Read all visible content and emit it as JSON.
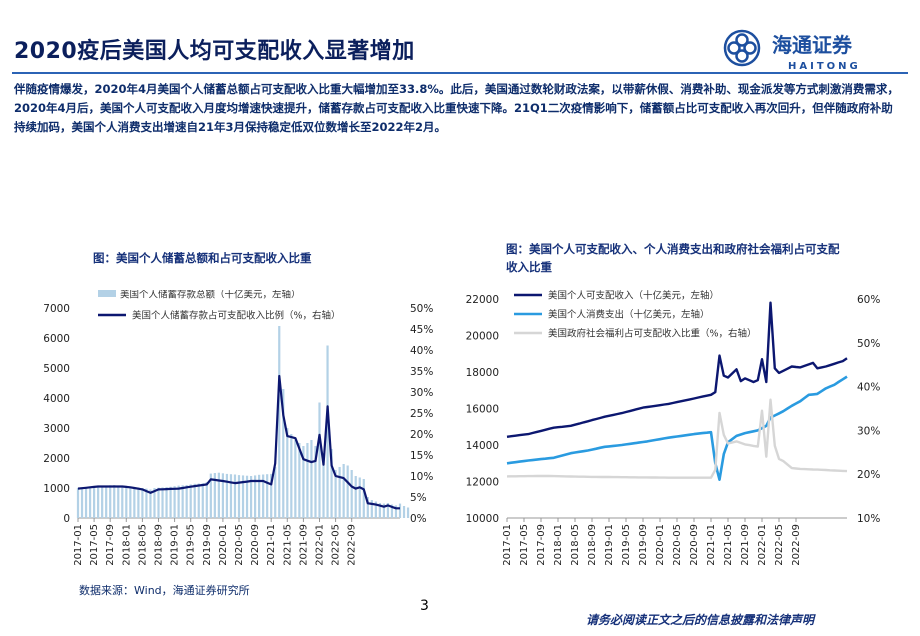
{
  "header": {
    "title": "2020疫后美国人均可支配收入显著增加",
    "intro": "伴随疫情爆发，2020年4月美国个人储蓄总额占可支配收入比重大幅增加至33.8%。此后，美国通过数轮财政法案，以带薪休假、消费补助、现金派发等方式刺激消费需求，2020年4月后，美国个人可支配收入月度均增速快速提升，储蓄存款占可支配收入比重快速下降。21Q1二次疫情影响下，储蓄额占比可支配收入再次回升，但伴随政府补助持续加码，美国个人消费支出增速自21年3月保持稳定低双位数增长至2022年2月。"
  },
  "logo": {
    "name": "海通证券",
    "latin": "HAITONG",
    "brand_color": "#1d4f9f"
  },
  "footer": {
    "source": "数据来源：Wind，海通证券研究所",
    "page_number": "3",
    "disclaimer": "请务必阅读正文之后的信息披露和法律声明"
  },
  "chart_data": [
    {
      "type": "bar",
      "title": "图：美国个人储蓄总额和占可支配收入比重",
      "x_ticks": [
        "2017-01",
        "2017-05",
        "2017-09",
        "2018-01",
        "2018-05",
        "2018-09",
        "2019-01",
        "2019-05",
        "2019-09",
        "2020-01",
        "2020-05",
        "2020-09",
        "2021-01",
        "2021-05",
        "2021-09",
        "2022-01",
        "2022-05",
        "2022-09"
      ],
      "ylim_left": [
        0,
        7000
      ],
      "yticks_left": [
        "0",
        "1000",
        "2000",
        "3000",
        "4000",
        "5000",
        "6000",
        "7000"
      ],
      "ylim_right": [
        0,
        50
      ],
      "yticks_right": [
        "0%",
        "5%",
        "10%",
        "15%",
        "20%",
        "25%",
        "30%",
        "35%",
        "40%",
        "45%",
        "50%"
      ],
      "legend_position": "top-left",
      "colors": {
        "bars": "#b3d1e6",
        "line": "#0c1770"
      },
      "series": [
        {
          "name": "美国个人储蓄存款总额（十亿美元，左轴）",
          "axis": "left",
          "kind": "bar",
          "values": [
            1000,
            1010,
            1020,
            1040,
            1050,
            1060,
            1070,
            1080,
            1090,
            1100,
            1080,
            1070,
            1050,
            1040,
            1030,
            1020,
            1000,
            980,
            950,
            1000,
            1010,
            1020,
            1030,
            1040,
            1060,
            1080,
            1090,
            1100,
            1120,
            1140,
            1150,
            1160,
            1200,
            1480,
            1500,
            1510,
            1490,
            1470,
            1460,
            1450,
            1430,
            1420,
            1410,
            1400,
            1420,
            1440,
            1450,
            1460,
            1470,
            1700,
            6400,
            4300,
            3000,
            2800,
            2600,
            2500,
            2400,
            2500,
            2600,
            2400,
            3850,
            2100,
            5750,
            2300,
            1600,
            1700,
            1800,
            1750,
            1600,
            1400,
            1350,
            1300,
            700,
            600,
            550,
            500,
            480,
            500,
            450,
            420,
            480,
            400,
            350
          ],
          "points": [
            [
              1,
              1000
            ],
            [
              6,
              1010
            ],
            [
              12,
              1050
            ],
            [
              20,
              1000
            ],
            [
              34,
              1480
            ],
            [
              48,
              1470
            ],
            [
              50,
              1700
            ],
            [
              51,
              6400
            ],
            [
              52,
              4300
            ],
            [
              53,
              3000
            ],
            [
              58,
              2600
            ],
            [
              60,
              2400
            ],
            [
              61,
              3850
            ],
            [
              62,
              2100
            ],
            [
              63,
              5750
            ],
            [
              64,
              2300
            ],
            [
              65,
              1600
            ],
            [
              70,
              1350
            ],
            [
              73,
              700
            ],
            [
              81,
              350
            ]
          ]
        },
        {
          "name": "美国个人储蓄存款占可支配收入比例（%，右轴）",
          "axis": "right",
          "kind": "line",
          "points": [
            [
              1,
              7
            ],
            [
              6,
              7.5
            ],
            [
              12,
              7.5
            ],
            [
              14,
              7.3
            ],
            [
              17,
              6.8
            ],
            [
              19,
              6.0
            ],
            [
              21,
              6.8
            ],
            [
              26,
              7.0
            ],
            [
              30,
              7.6
            ],
            [
              33,
              8.0
            ],
            [
              34,
              9.2
            ],
            [
              37,
              8.8
            ],
            [
              40,
              8.3
            ],
            [
              44,
              8.8
            ],
            [
              47,
              8.8
            ],
            [
              49,
              8.0
            ],
            [
              50,
              13.0
            ],
            [
              51,
              33.8
            ],
            [
              52,
              24.5
            ],
            [
              53,
              19.5
            ],
            [
              55,
              19.0
            ],
            [
              57,
              14.0
            ],
            [
              59,
              13.3
            ],
            [
              60,
              13.6
            ],
            [
              61,
              19.8
            ],
            [
              62,
              12.7
            ],
            [
              63,
              26.6
            ],
            [
              64,
              12.5
            ],
            [
              65,
              10.0
            ],
            [
              67,
              9.5
            ],
            [
              69,
              7.5
            ],
            [
              70,
              7.0
            ],
            [
              71,
              7.3
            ],
            [
              72,
              6.8
            ],
            [
              73,
              3.5
            ],
            [
              75,
              3.2
            ],
            [
              77,
              2.7
            ],
            [
              78,
              3.0
            ],
            [
              80,
              2.3
            ],
            [
              81,
              2.3
            ]
          ]
        }
      ]
    },
    {
      "type": "line",
      "title": "图：美国个人可支配收入、个人消费支出和政府社会福利占可支配收入比重",
      "x_ticks": [
        "2017-01",
        "2017-05",
        "2017-09",
        "2018-01",
        "2018-05",
        "2018-09",
        "2019-01",
        "2019-05",
        "2019-09",
        "2020-01",
        "2020-05",
        "2020-09",
        "2021-01",
        "2021-05",
        "2021-09",
        "2022-01",
        "2022-05",
        "2022-09"
      ],
      "ylim_left": [
        10000,
        22000
      ],
      "yticks_left": [
        "10000",
        "12000",
        "14000",
        "16000",
        "18000",
        "20000",
        "22000"
      ],
      "ylim_right": [
        10,
        60
      ],
      "yticks_right": [
        "10%",
        "20%",
        "30%",
        "40%",
        "50%",
        "60%"
      ],
      "legend_position": "top-left",
      "colors": {
        "disposable_income": "#0c1770",
        "consumption": "#2a9be0",
        "welfare": "#d6d6d6"
      },
      "series": [
        {
          "name": "美国个人可支配收入（十亿美元，左轴）",
          "axis": "left",
          "points": [
            [
              1,
              14450
            ],
            [
              6,
              14600
            ],
            [
              12,
              14950
            ],
            [
              16,
              15050
            ],
            [
              20,
              15300
            ],
            [
              24,
              15550
            ],
            [
              28,
              15750
            ],
            [
              33,
              16050
            ],
            [
              39,
              16250
            ],
            [
              45,
              16550
            ],
            [
              49,
              16750
            ],
            [
              50,
              16900
            ],
            [
              51,
              18900
            ],
            [
              52,
              17800
            ],
            [
              53,
              17700
            ],
            [
              55,
              18150
            ],
            [
              56,
              17500
            ],
            [
              57,
              17650
            ],
            [
              59,
              17450
            ],
            [
              60,
              17550
            ],
            [
              61,
              18700
            ],
            [
              62,
              17450
            ],
            [
              63,
              21800
            ],
            [
              64,
              18200
            ],
            [
              65,
              17950
            ],
            [
              68,
              18300
            ],
            [
              70,
              18250
            ],
            [
              73,
              18500
            ],
            [
              74,
              18200
            ],
            [
              76,
              18300
            ],
            [
              78,
              18450
            ],
            [
              80,
              18600
            ],
            [
              81,
              18750
            ]
          ]
        },
        {
          "name": "美国个人消费支出（十亿美元，左轴）",
          "axis": "left",
          "points": [
            [
              1,
              13000
            ],
            [
              6,
              13150
            ],
            [
              12,
              13300
            ],
            [
              16,
              13550
            ],
            [
              20,
              13700
            ],
            [
              24,
              13900
            ],
            [
              28,
              14000
            ],
            [
              34,
              14200
            ],
            [
              39,
              14400
            ],
            [
              45,
              14600
            ],
            [
              49,
              14700
            ],
            [
              50,
              13000
            ],
            [
              51,
              12100
            ],
            [
              52,
              13500
            ],
            [
              53,
              14150
            ],
            [
              55,
              14500
            ],
            [
              57,
              14650
            ],
            [
              60,
              14800
            ],
            [
              62,
              15050
            ],
            [
              63,
              15500
            ],
            [
              66,
              15850
            ],
            [
              68,
              16150
            ],
            [
              70,
              16400
            ],
            [
              72,
              16750
            ],
            [
              74,
              16800
            ],
            [
              76,
              17100
            ],
            [
              78,
              17300
            ],
            [
              81,
              17750
            ]
          ]
        },
        {
          "name": "美国政府社会福利占可支配收入比重（%，右轴）",
          "axis": "right",
          "points": [
            [
              1,
              19.5
            ],
            [
              10,
              19.6
            ],
            [
              20,
              19.4
            ],
            [
              30,
              19.3
            ],
            [
              40,
              19.2
            ],
            [
              49,
              19.2
            ],
            [
              50,
              21
            ],
            [
              51,
              34
            ],
            [
              52,
              29
            ],
            [
              53,
              27
            ],
            [
              55,
              27.5
            ],
            [
              57,
              26.8
            ],
            [
              60,
              26.3
            ],
            [
              61,
              34.5
            ],
            [
              62,
              24
            ],
            [
              63,
              37
            ],
            [
              64,
              26.5
            ],
            [
              65,
              23.5
            ],
            [
              66,
              23
            ],
            [
              68,
              21.4
            ],
            [
              70,
              21.2
            ],
            [
              75,
              21.0
            ],
            [
              81,
              20.7
            ]
          ]
        }
      ]
    }
  ]
}
